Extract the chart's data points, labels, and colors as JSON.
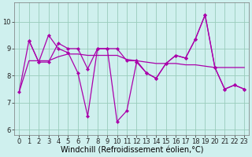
{
  "xlabel": "Windchill (Refroidissement éolien,°C)",
  "bg_color": "#cff0ee",
  "grid_color": "#99ccbb",
  "line_color": "#aa00aa",
  "xlim": [
    -0.5,
    23.5
  ],
  "ylim": [
    5.8,
    10.7
  ],
  "xticks": [
    0,
    1,
    2,
    3,
    4,
    5,
    6,
    7,
    8,
    9,
    10,
    11,
    12,
    13,
    14,
    15,
    16,
    17,
    18,
    19,
    20,
    21,
    22,
    23
  ],
  "yticks": [
    6,
    7,
    8,
    9,
    10
  ],
  "line1_x": [
    0,
    1,
    2,
    3,
    4,
    5,
    6,
    7,
    8,
    9,
    10,
    11,
    12,
    13,
    14,
    15,
    16,
    17,
    18,
    19,
    20,
    21,
    22,
    23
  ],
  "line1_y": [
    7.4,
    9.3,
    8.5,
    9.5,
    9.0,
    8.85,
    8.1,
    6.5,
    9.0,
    9.0,
    6.3,
    6.7,
    8.5,
    8.1,
    7.9,
    8.45,
    8.75,
    8.65,
    9.35,
    10.25,
    8.3,
    7.5,
    7.65,
    7.5
  ],
  "line2_x": [
    0,
    1,
    2,
    3,
    4,
    5,
    6,
    7,
    8,
    9,
    10,
    11,
    12,
    13,
    14,
    15,
    16,
    17,
    18,
    19,
    20,
    21,
    22,
    23
  ],
  "line2_y": [
    7.4,
    8.55,
    8.55,
    8.55,
    8.7,
    8.8,
    8.8,
    8.75,
    8.75,
    8.75,
    8.75,
    8.6,
    8.55,
    8.5,
    8.45,
    8.45,
    8.45,
    8.4,
    8.4,
    8.35,
    8.3,
    8.3,
    8.3,
    8.3
  ],
  "line3_x": [
    1,
    2,
    3,
    4,
    5,
    6,
    7,
    8,
    9,
    10,
    11,
    12,
    13,
    14,
    15,
    16,
    17,
    18,
    19,
    20,
    21,
    22,
    23
  ],
  "line3_y": [
    9.3,
    8.5,
    8.5,
    9.2,
    9.0,
    9.0,
    8.25,
    9.0,
    9.0,
    9.0,
    8.55,
    8.55,
    8.1,
    7.9,
    8.45,
    8.75,
    8.65,
    9.35,
    10.25,
    8.3,
    7.5,
    7.65,
    7.5
  ],
  "xlabel_fontsize": 7,
  "tick_fontsize": 6
}
